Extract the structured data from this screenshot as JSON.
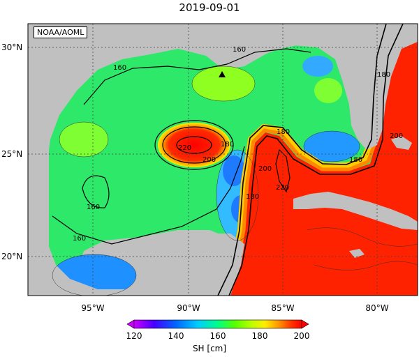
{
  "title": "2019-09-01",
  "badge": "NOAA/AOML",
  "axes": {
    "lat_ticks": [
      "20°N",
      "25°N",
      "30°N"
    ],
    "lon_ticks": [
      "95°W",
      "90°W",
      "85°W",
      "80°W"
    ]
  },
  "contour_labels": [
    "160",
    "160",
    "160",
    "160",
    "180",
    "180",
    "180",
    "180",
    "200",
    "200",
    "220",
    "220",
    "180",
    "200"
  ],
  "colorbar": {
    "label": "SH [cm]",
    "ticks": [
      "120",
      "140",
      "160",
      "180",
      "200"
    ],
    "min": 120,
    "max": 200,
    "colors": [
      "#cc00ff",
      "#4400ff",
      "#0066ff",
      "#00ccff",
      "#00ff88",
      "#55ff00",
      "#bbff00",
      "#ffee00",
      "#ff9900",
      "#ff3300",
      "#ff0000"
    ]
  },
  "colors": {
    "land": "#c0c0c0",
    "ocean_base": "#2ee86a",
    "warm": "#ff2200",
    "cool": "#1e90ff"
  },
  "marker": "triangle"
}
